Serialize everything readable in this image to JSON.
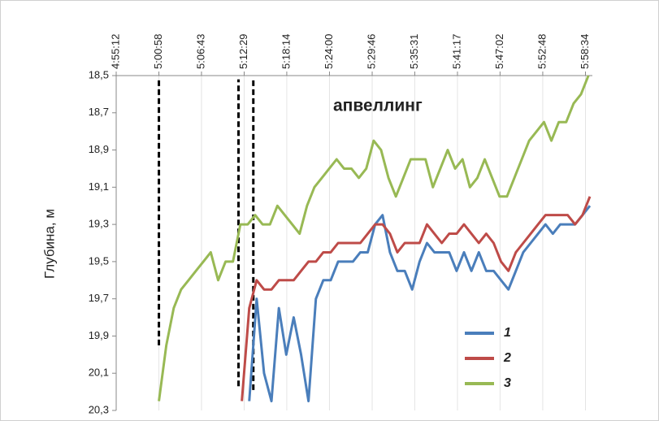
{
  "chart_data": {
    "type": "line",
    "ylabel": "Глубина, м",
    "annotation": "апвеллинг",
    "xlim": [
      "4:55:12",
      "5:59:30"
    ],
    "xticks": [
      "4:55:12",
      "5:00:58",
      "5:06:43",
      "5:12:29",
      "5:18:14",
      "5:24:00",
      "5:29:46",
      "5:35:31",
      "5:41:17",
      "5:47:02",
      "5:52:48",
      "5:58:34"
    ],
    "ylim": [
      20.3,
      18.5
    ],
    "yticks": [
      {
        "value": 18.5,
        "label": "18,5"
      },
      {
        "value": 18.7,
        "label": "18,7"
      },
      {
        "value": 18.9,
        "label": "18,9"
      },
      {
        "value": 19.1,
        "label": "19,1"
      },
      {
        "value": 19.3,
        "label": "19,3"
      },
      {
        "value": 19.5,
        "label": "19,5"
      },
      {
        "value": 19.7,
        "label": "19,7"
      },
      {
        "value": 19.9,
        "label": "19,9"
      },
      {
        "value": 20.1,
        "label": "20,1"
      },
      {
        "value": 20.3,
        "label": "20,3"
      }
    ],
    "grid": true,
    "legend": "lower right",
    "vlines": [
      {
        "x": "5:00:58",
        "ylim": [
          19.95,
          18.52
        ]
      },
      {
        "x": "5:11:43",
        "ylim": [
          20.17,
          18.52
        ]
      },
      {
        "x": "5:13:43",
        "ylim": [
          20.19,
          18.52
        ]
      }
    ],
    "series": [
      {
        "name": "1",
        "color": "#4a7ebb",
        "x": [
          "5:13:10",
          "5:14:10",
          "5:15:10",
          "5:16:10",
          "5:17:10",
          "5:18:10",
          "5:19:10",
          "5:20:10",
          "5:21:10",
          "5:22:10",
          "5:23:10",
          "5:24:10",
          "5:25:10",
          "5:26:10",
          "5:27:10",
          "5:28:10",
          "5:29:10",
          "5:30:10",
          "5:31:10",
          "5:32:10",
          "5:33:10",
          "5:34:10",
          "5:35:10",
          "5:36:10",
          "5:37:10",
          "5:38:10",
          "5:39:10",
          "5:40:10",
          "5:41:10",
          "5:42:10",
          "5:43:10",
          "5:44:10",
          "5:45:10",
          "5:46:10",
          "5:47:10",
          "5:48:10",
          "5:49:10",
          "5:50:10",
          "5:51:10",
          "5:52:10",
          "5:53:10",
          "5:54:10",
          "5:55:10",
          "5:56:10",
          "5:57:10",
          "5:58:10",
          "5:59:10"
        ],
        "values": [
          20.25,
          19.7,
          20.1,
          20.25,
          19.75,
          20.0,
          19.8,
          20.0,
          20.25,
          19.7,
          19.6,
          19.6,
          19.5,
          19.5,
          19.5,
          19.45,
          19.45,
          19.3,
          19.25,
          19.45,
          19.55,
          19.55,
          19.65,
          19.5,
          19.4,
          19.45,
          19.45,
          19.45,
          19.55,
          19.45,
          19.55,
          19.45,
          19.55,
          19.55,
          19.6,
          19.65,
          19.55,
          19.45,
          19.4,
          19.35,
          19.3,
          19.35,
          19.3,
          19.3,
          19.3,
          19.25,
          19.2
        ]
      },
      {
        "name": "2",
        "color": "#be4b48",
        "x": [
          "5:12:10",
          "5:13:10",
          "5:14:10",
          "5:15:10",
          "5:16:10",
          "5:17:10",
          "5:18:10",
          "5:19:10",
          "5:20:10",
          "5:21:10",
          "5:22:10",
          "5:23:10",
          "5:24:10",
          "5:25:10",
          "5:26:10",
          "5:27:10",
          "5:28:10",
          "5:29:10",
          "5:30:10",
          "5:31:10",
          "5:32:10",
          "5:33:10",
          "5:34:10",
          "5:35:10",
          "5:36:10",
          "5:37:10",
          "5:38:10",
          "5:39:10",
          "5:40:10",
          "5:41:10",
          "5:42:10",
          "5:43:10",
          "5:44:10",
          "5:45:10",
          "5:46:10",
          "5:47:10",
          "5:48:10",
          "5:49:10",
          "5:50:10",
          "5:51:10",
          "5:52:10",
          "5:53:10",
          "5:54:10",
          "5:55:10",
          "5:56:10",
          "5:57:10",
          "5:58:10",
          "5:59:10"
        ],
        "values": [
          20.25,
          19.75,
          19.6,
          19.65,
          19.65,
          19.6,
          19.6,
          19.6,
          19.55,
          19.5,
          19.5,
          19.45,
          19.45,
          19.4,
          19.4,
          19.4,
          19.4,
          19.35,
          19.3,
          19.3,
          19.35,
          19.45,
          19.4,
          19.4,
          19.4,
          19.3,
          19.35,
          19.4,
          19.35,
          19.35,
          19.3,
          19.35,
          19.4,
          19.35,
          19.4,
          19.5,
          19.55,
          19.45,
          19.4,
          19.35,
          19.3,
          19.25,
          19.25,
          19.25,
          19.25,
          19.3,
          19.25,
          19.15
        ]
      },
      {
        "name": "3",
        "color": "#98b954",
        "x": [
          "5:00:58",
          "5:01:58",
          "5:02:58",
          "5:03:58",
          "5:04:58",
          "5:05:58",
          "5:06:58",
          "5:07:58",
          "5:08:58",
          "5:09:58",
          "5:10:58",
          "5:11:58",
          "5:12:58",
          "5:13:58",
          "5:14:58",
          "5:15:58",
          "5:16:58",
          "5:17:58",
          "5:18:58",
          "5:19:58",
          "5:20:58",
          "5:21:58",
          "5:22:58",
          "5:23:58",
          "5:24:58",
          "5:25:58",
          "5:26:58",
          "5:27:58",
          "5:28:58",
          "5:29:58",
          "5:30:58",
          "5:31:58",
          "5:32:58",
          "5:33:58",
          "5:34:58",
          "5:35:58",
          "5:36:58",
          "5:37:58",
          "5:38:58",
          "5:39:58",
          "5:40:58",
          "5:41:58",
          "5:42:58",
          "5:43:58",
          "5:44:58",
          "5:45:58",
          "5:46:58",
          "5:47:58",
          "5:48:58",
          "5:49:58",
          "5:50:58",
          "5:51:58",
          "5:52:58",
          "5:53:58",
          "5:54:58",
          "5:55:58",
          "5:56:58",
          "5:57:58",
          "5:58:58"
        ],
        "values": [
          20.25,
          19.95,
          19.75,
          19.65,
          19.6,
          19.55,
          19.5,
          19.45,
          19.6,
          19.5,
          19.5,
          19.3,
          19.3,
          19.25,
          19.3,
          19.3,
          19.2,
          19.25,
          19.3,
          19.35,
          19.2,
          19.1,
          19.05,
          19.0,
          18.95,
          19.0,
          19.0,
          19.05,
          19.0,
          18.85,
          18.9,
          19.05,
          19.15,
          19.05,
          18.95,
          18.95,
          18.95,
          19.1,
          19.0,
          18.9,
          19.0,
          18.95,
          19.1,
          19.05,
          18.95,
          19.05,
          19.15,
          19.15,
          19.05,
          18.95,
          18.85,
          18.8,
          18.75,
          18.85,
          18.75,
          18.75,
          18.65,
          18.6,
          18.5
        ]
      }
    ]
  }
}
